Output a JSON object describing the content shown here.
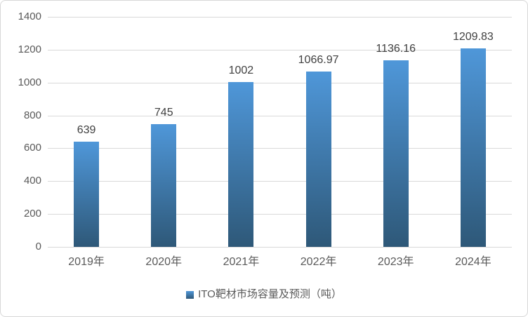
{
  "chart_data": {
    "type": "bar",
    "title": "",
    "categories": [
      "2019年",
      "2020年",
      "2021年",
      "2022年",
      "2023年",
      "2024年"
    ],
    "values": [
      639,
      745,
      1002,
      1066.97,
      1136.16,
      1209.83
    ],
    "value_labels": [
      "639",
      "745",
      "1002",
      "1066.97",
      "1136.16",
      "1209.83"
    ],
    "series_name": "ITO靶材市场容量及预测（吨）",
    "xlabel": "",
    "ylabel": "",
    "ylim": [
      0,
      1400
    ],
    "ytick_interval": 200,
    "ytick_labels": [
      "0",
      "200",
      "400",
      "600",
      "800",
      "1000",
      "1200",
      "1400"
    ],
    "grid": true,
    "legend_position": "bottom"
  },
  "legend": {
    "label": "ITO靶材市场容量及预测（吨）"
  },
  "colors": {
    "bar_gradient_top": "#4f97d9",
    "bar_gradient_bottom": "#2e5878",
    "gridline": "#d9d9d9",
    "axis_label": "#595959",
    "value_label": "#404040",
    "background": "#ffffff",
    "border": "#d7d7d7"
  }
}
